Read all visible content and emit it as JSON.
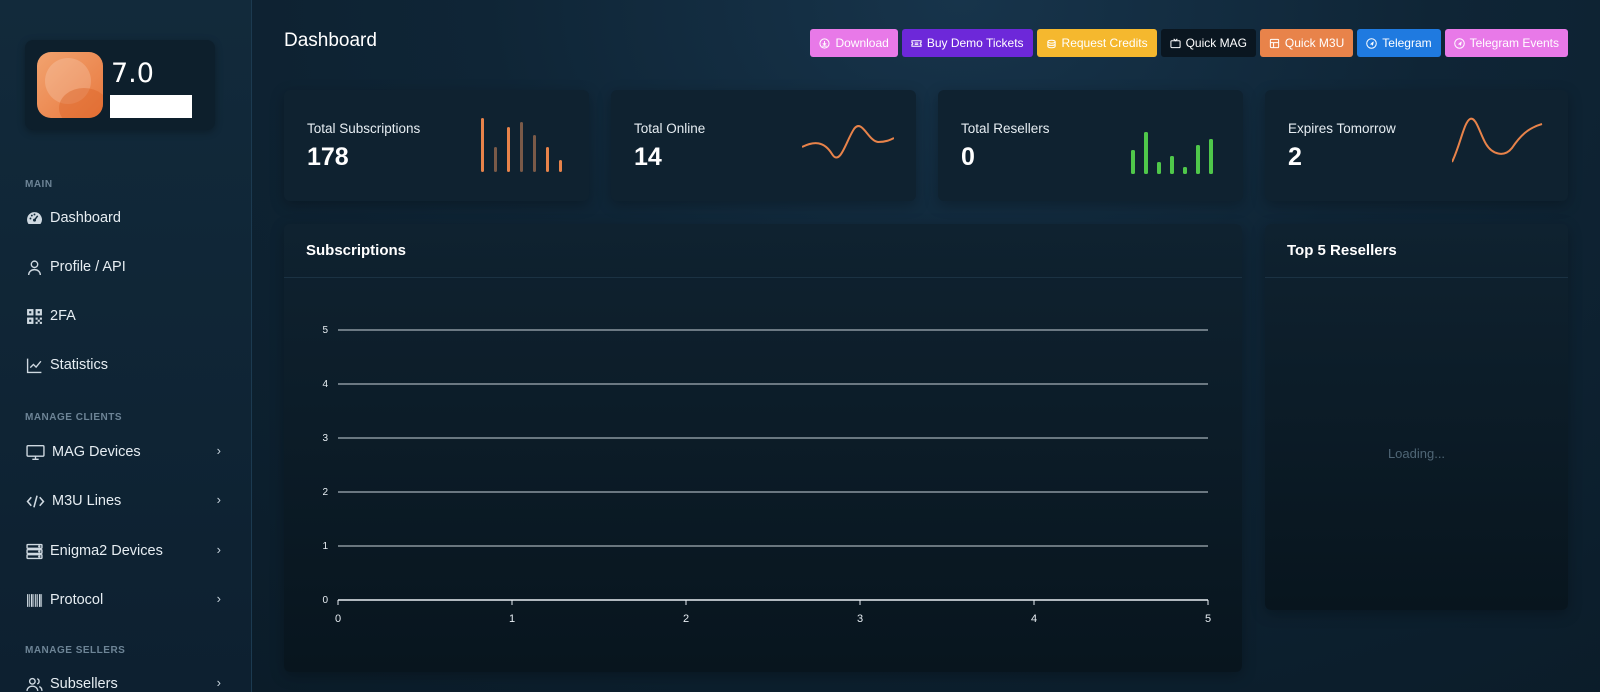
{
  "app": {
    "version": "7.0"
  },
  "sidebar": {
    "sections": [
      {
        "label": "MAIN"
      },
      {
        "label": "MANAGE CLIENTS"
      },
      {
        "label": "MANAGE SELLERS"
      }
    ],
    "items": [
      {
        "label": "Dashboard",
        "icon": "gauge-icon"
      },
      {
        "label": "Profile / API",
        "icon": "user-icon"
      },
      {
        "label": "2FA",
        "icon": "qrcode-icon"
      },
      {
        "label": "Statistics",
        "icon": "line-chart-icon"
      },
      {
        "label": "MAG Devices",
        "icon": "monitor-icon",
        "chevron": "›"
      },
      {
        "label": "M3U Lines",
        "icon": "code-icon",
        "chevron": "›"
      },
      {
        "label": "Enigma2 Devices",
        "icon": "server-icon",
        "chevron": "›"
      },
      {
        "label": "Protocol",
        "icon": "barcode-icon",
        "chevron": "›"
      },
      {
        "label": "Subsellers",
        "icon": "users-icon",
        "chevron": "›"
      }
    ]
  },
  "header": {
    "title": "Dashboard",
    "buttons": [
      {
        "label": "Download",
        "icon": "cloud-download-icon",
        "color": "#e879e8"
      },
      {
        "label": "Buy Demo Tickets",
        "icon": "ticket-icon",
        "color": "#6d28d9"
      },
      {
        "label": "Request Credits",
        "icon": "coins-icon",
        "color": "#f5b82e"
      },
      {
        "label": "Quick MAG",
        "icon": "tv-icon",
        "color": "#0a1620"
      },
      {
        "label": "Quick M3U",
        "icon": "list-icon",
        "color": "#e8834a"
      },
      {
        "label": "Telegram",
        "icon": "telegram-icon",
        "color": "#1f7ae0"
      },
      {
        "label": "Telegram Events",
        "icon": "telegram-icon",
        "color": "#e879e8"
      }
    ]
  },
  "stats": [
    {
      "label": "Total Subscriptions",
      "value": "178",
      "spark": "bar",
      "color": "#e8834a"
    },
    {
      "label": "Total Online",
      "value": "14",
      "spark": "line",
      "color": "#e8834a"
    },
    {
      "label": "Total Resellers",
      "value": "0",
      "spark": "bar",
      "color": "#4fc74a"
    },
    {
      "label": "Expires Tomorrow",
      "value": "2",
      "spark": "line",
      "color": "#e8834a"
    }
  ],
  "panels": {
    "subscriptions": {
      "title": "Subscriptions"
    },
    "top_resellers": {
      "title": "Top 5 Resellers",
      "loading_text": "Loading..."
    }
  },
  "chart_data": {
    "type": "line",
    "title": "",
    "xlabel": "",
    "ylabel": "",
    "x": [
      0,
      1,
      2,
      3,
      4,
      5
    ],
    "xlim": [
      0,
      5
    ],
    "ylim": [
      0,
      5
    ],
    "xticks": [
      0,
      1,
      2,
      3,
      4,
      5
    ],
    "yticks": [
      0,
      1,
      2,
      3,
      4,
      5
    ],
    "grid": true,
    "series": []
  }
}
